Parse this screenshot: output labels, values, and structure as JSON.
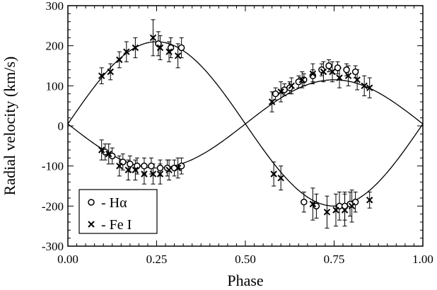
{
  "chart_data": {
    "type": "scatter",
    "xlabel": "Phase",
    "ylabel": "Radial velocity (km/s)",
    "xlim": [
      0,
      1
    ],
    "ylim": [
      -300,
      300
    ],
    "x_ticks": [
      0,
      0.25,
      0.5,
      0.75,
      1
    ],
    "x_tick_labels": [
      "0.00",
      "0.25",
      "0.50",
      "0.75",
      "1.00"
    ],
    "y_ticks": [
      -300,
      -200,
      -100,
      0,
      100,
      200,
      300
    ],
    "y_tick_labels": [
      "-300",
      "-200",
      "-100",
      "0",
      "100",
      "200",
      "300"
    ],
    "legend_position": "bottom-left",
    "legend": [
      {
        "marker": "circle",
        "label": "- Hα"
      },
      {
        "marker": "cross",
        "label": "- Fe I"
      }
    ],
    "curves": [
      {
        "type": "orbit",
        "amplitude": 205,
        "offset": 5,
        "sign": 1
      },
      {
        "type": "orbit",
        "amplitude": 110,
        "offset": 5,
        "sign": -1
      }
    ],
    "series": [
      {
        "marker": "circle",
        "points": [
          {
            "x": 0.255,
            "y": 205,
            "err": 30
          },
          {
            "x": 0.29,
            "y": 195,
            "err": 25
          },
          {
            "x": 0.32,
            "y": 195,
            "err": 25
          },
          {
            "x": 0.105,
            "y": -65,
            "err": 20
          },
          {
            "x": 0.125,
            "y": -75,
            "err": 20
          },
          {
            "x": 0.155,
            "y": -90,
            "err": 20
          },
          {
            "x": 0.175,
            "y": -95,
            "err": 20
          },
          {
            "x": 0.195,
            "y": -100,
            "err": 20
          },
          {
            "x": 0.215,
            "y": -100,
            "err": 20
          },
          {
            "x": 0.235,
            "y": -100,
            "err": 20
          },
          {
            "x": 0.26,
            "y": -105,
            "err": 20
          },
          {
            "x": 0.28,
            "y": -105,
            "err": 20
          },
          {
            "x": 0.3,
            "y": -105,
            "err": 20
          },
          {
            "x": 0.32,
            "y": -100,
            "err": 20
          },
          {
            "x": 0.585,
            "y": 80,
            "err": 15
          },
          {
            "x": 0.61,
            "y": 90,
            "err": 15
          },
          {
            "x": 0.625,
            "y": 95,
            "err": 15
          },
          {
            "x": 0.65,
            "y": 110,
            "err": 15
          },
          {
            "x": 0.665,
            "y": 115,
            "err": 15
          },
          {
            "x": 0.69,
            "y": 125,
            "err": 15
          },
          {
            "x": 0.715,
            "y": 140,
            "err": 15
          },
          {
            "x": 0.735,
            "y": 150,
            "err": 15
          },
          {
            "x": 0.76,
            "y": 145,
            "err": 15
          },
          {
            "x": 0.785,
            "y": 140,
            "err": 15
          },
          {
            "x": 0.81,
            "y": 135,
            "err": 15
          },
          {
            "x": 0.665,
            "y": -190,
            "err": 25
          },
          {
            "x": 0.7,
            "y": -200,
            "err": 30
          },
          {
            "x": 0.765,
            "y": -200,
            "err": 35
          },
          {
            "x": 0.78,
            "y": -200,
            "err": 35
          },
          {
            "x": 0.795,
            "y": -195,
            "err": 30
          },
          {
            "x": 0.81,
            "y": -190,
            "err": 25
          }
        ]
      },
      {
        "marker": "cross",
        "points": [
          {
            "x": 0.095,
            "y": 125,
            "err": 20
          },
          {
            "x": 0.12,
            "y": 135,
            "err": 20
          },
          {
            "x": 0.145,
            "y": 165,
            "err": 20
          },
          {
            "x": 0.165,
            "y": 185,
            "err": 25
          },
          {
            "x": 0.19,
            "y": 195,
            "err": 25
          },
          {
            "x": 0.24,
            "y": 220,
            "err": 45
          },
          {
            "x": 0.26,
            "y": 195,
            "err": 30
          },
          {
            "x": 0.285,
            "y": 185,
            "err": 25
          },
          {
            "x": 0.31,
            "y": 175,
            "err": 30
          },
          {
            "x": 0.095,
            "y": -60,
            "err": 25
          },
          {
            "x": 0.115,
            "y": -70,
            "err": 25
          },
          {
            "x": 0.145,
            "y": -100,
            "err": 25
          },
          {
            "x": 0.17,
            "y": -110,
            "err": 25
          },
          {
            "x": 0.19,
            "y": -110,
            "err": 25
          },
          {
            "x": 0.215,
            "y": -120,
            "err": 25
          },
          {
            "x": 0.24,
            "y": -120,
            "err": 25
          },
          {
            "x": 0.26,
            "y": -120,
            "err": 25
          },
          {
            "x": 0.285,
            "y": -110,
            "err": 25
          },
          {
            "x": 0.31,
            "y": -105,
            "err": 25
          },
          {
            "x": 0.575,
            "y": 60,
            "err": 25
          },
          {
            "x": 0.6,
            "y": 85,
            "err": 25
          },
          {
            "x": 0.63,
            "y": 100,
            "err": 20
          },
          {
            "x": 0.66,
            "y": 115,
            "err": 20
          },
          {
            "x": 0.69,
            "y": 130,
            "err": 25
          },
          {
            "x": 0.72,
            "y": 135,
            "err": 25
          },
          {
            "x": 0.745,
            "y": 135,
            "err": 25
          },
          {
            "x": 0.765,
            "y": 120,
            "err": 25
          },
          {
            "x": 0.79,
            "y": 125,
            "err": 25
          },
          {
            "x": 0.815,
            "y": 115,
            "err": 25
          },
          {
            "x": 0.835,
            "y": 100,
            "err": 25
          },
          {
            "x": 0.85,
            "y": 95,
            "err": 25
          },
          {
            "x": 0.58,
            "y": -120,
            "err": 30
          },
          {
            "x": 0.6,
            "y": -130,
            "err": 30
          },
          {
            "x": 0.69,
            "y": -195,
            "err": 40
          },
          {
            "x": 0.73,
            "y": -215,
            "err": 40
          },
          {
            "x": 0.755,
            "y": -210,
            "err": 40
          },
          {
            "x": 0.78,
            "y": -210,
            "err": 40
          },
          {
            "x": 0.8,
            "y": -200,
            "err": 40
          },
          {
            "x": 0.85,
            "y": -185,
            "err": 20
          }
        ]
      }
    ]
  }
}
